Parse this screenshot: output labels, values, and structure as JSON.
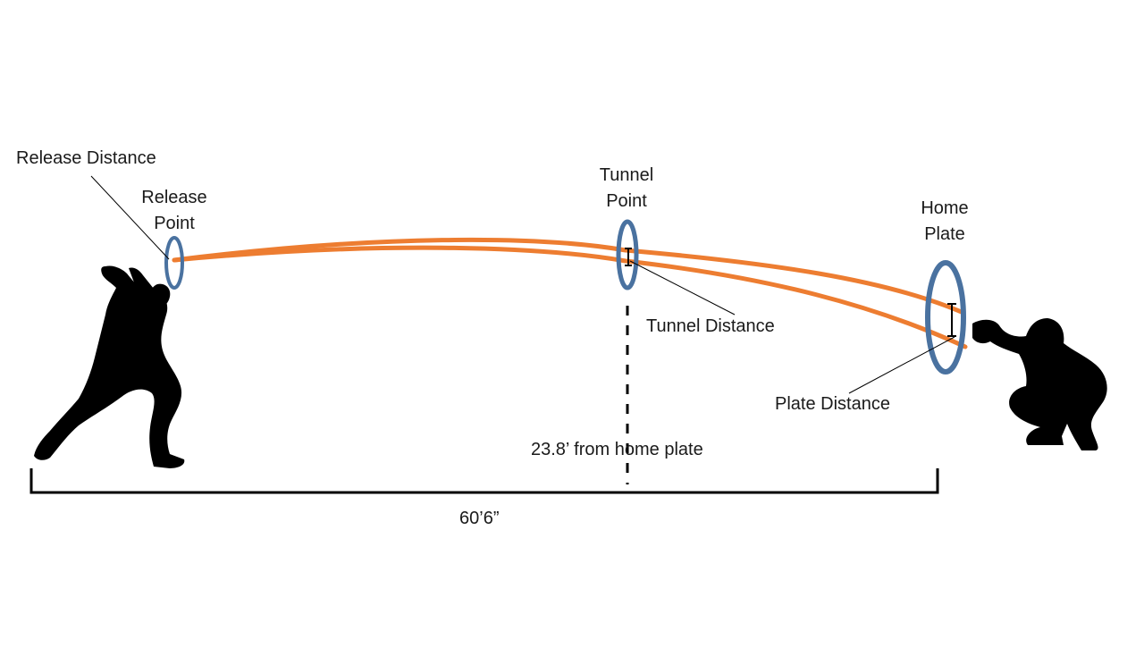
{
  "labels": {
    "release_distance": "Release Distance",
    "release_point": [
      "Release",
      "Point"
    ],
    "tunnel_point": [
      "Tunnel",
      "Point"
    ],
    "home_plate": [
      "Home",
      "Plate"
    ],
    "tunnel_distance": "Tunnel Distance",
    "plate_distance": "Plate Distance",
    "tunnel_from_home": "23.8’ from home plate",
    "total_distance": "60’6”"
  },
  "colors": {
    "pitch_path": "#ED7D31",
    "ring": "#4A72A0",
    "silhouette": "#000000",
    "text": "#1a1a1a"
  },
  "icons": {
    "pitcher": "pitcher-silhouette-icon",
    "catcher": "catcher-silhouette-icon"
  }
}
